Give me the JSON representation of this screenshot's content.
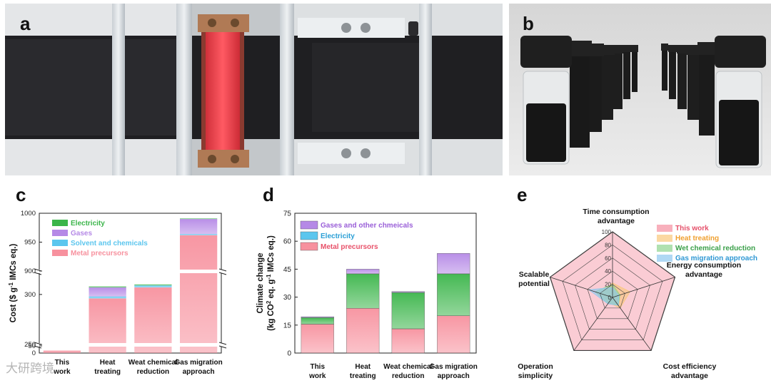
{
  "panels": {
    "a": {
      "label": "a"
    },
    "b": {
      "label": "b"
    },
    "c": {
      "label": "c"
    },
    "d": {
      "label": "d"
    },
    "e": {
      "label": "e"
    }
  },
  "watermark": "大研跨境",
  "colors": {
    "electricity_c": "#3bb54a",
    "gases": "#b589e6",
    "solvent": "#5cc6ee",
    "metal": "#f7919e",
    "gases_other": "#b589e6",
    "electricity_d": "#5cc6ee",
    "this_work": "#f58fa0",
    "heat_treating": "#f9c77a",
    "wet_chemical": "#8ed48f",
    "gas_migration": "#8ec8ef"
  },
  "chart_data": [
    {
      "id": "c",
      "type": "bar",
      "stacked": true,
      "broken_axis": true,
      "categories": [
        "This work",
        "Heat treating",
        "Weat chemical reduction",
        "Gas migration approach"
      ],
      "category_lines": [
        [
          "This",
          "work"
        ],
        [
          "Heat",
          "treating"
        ],
        [
          "Weat chemical",
          "reduction"
        ],
        [
          "Gas migration",
          "approach"
        ]
      ],
      "ylabel_parts": [
        "Cost ($ g",
        "-1",
        " IMCs eq.)"
      ],
      "yticks": [
        "0",
        "50",
        "250",
        "300",
        "900",
        "950",
        "1000"
      ],
      "series": [
        {
          "name": "Metal precursors",
          "values": [
            17,
            296,
            307,
            962
          ]
        },
        {
          "name": "Solvent and chemicals",
          "values": [
            0,
            2,
            2,
            2
          ]
        },
        {
          "name": "Gases",
          "values": [
            0,
            9,
            0,
            26
          ]
        },
        {
          "name": "Electricity",
          "values": [
            0,
            1,
            1,
            1
          ]
        }
      ],
      "legend": [
        "Electricity",
        "Gases",
        "Solvent and chemicals",
        "Metal precursors"
      ],
      "legend_position": "top-left"
    },
    {
      "id": "d",
      "type": "bar",
      "stacked": true,
      "categories": [
        "This work",
        "Heat treating",
        "Weat chemical reduction",
        "Gas migration approach"
      ],
      "category_lines": [
        [
          "This",
          "work"
        ],
        [
          "Heat",
          "treating"
        ],
        [
          "Weat chemical",
          "reduction"
        ],
        [
          "Gas migration",
          "approach"
        ]
      ],
      "ylabel_line1": "Climate change",
      "ylabel_parts": [
        "(kg CO",
        "2",
        " eq. g",
        "-1",
        " IMCs eq.)"
      ],
      "ylim": [
        0,
        75
      ],
      "yticks": [
        0,
        15,
        30,
        45,
        60,
        75
      ],
      "series": [
        {
          "name": "Metal precursors",
          "values": [
            15.5,
            24,
            13,
            20
          ]
        },
        {
          "name": "Electricity",
          "values": [
            3.5,
            18.5,
            19.5,
            22.5
          ]
        },
        {
          "name": "Gases and other chmeicals",
          "values": [
            0.5,
            2.5,
            0.5,
            11
          ]
        }
      ],
      "legend": [
        "Gases and other chmeicals",
        "Electricity",
        "Metal precursors"
      ],
      "legend_position": "top-left"
    },
    {
      "id": "e",
      "type": "radar",
      "axes": [
        [
          "Time consumption",
          "advantage"
        ],
        [
          "Energy consumption",
          "advantage"
        ],
        [
          "Cost efficiency",
          "advantage"
        ],
        [
          "Operation",
          "simplicity"
        ],
        [
          "Scalable",
          "potential"
        ]
      ],
      "rticks": [
        0,
        20,
        40,
        60,
        80,
        100
      ],
      "rlim": [
        0,
        100
      ],
      "series": [
        {
          "name": "This work",
          "values": [
            100,
            100,
            100,
            100,
            100
          ]
        },
        {
          "name": "Heat treating",
          "values": [
            22,
            28,
            20,
            10,
            18
          ]
        },
        {
          "name": "Wet chemical reduction",
          "values": [
            20,
            12,
            15,
            12,
            28
          ]
        },
        {
          "name": "Gas migration approach",
          "values": [
            15,
            10,
            15,
            12,
            38
          ]
        }
      ],
      "legend_position": "top-right"
    }
  ]
}
